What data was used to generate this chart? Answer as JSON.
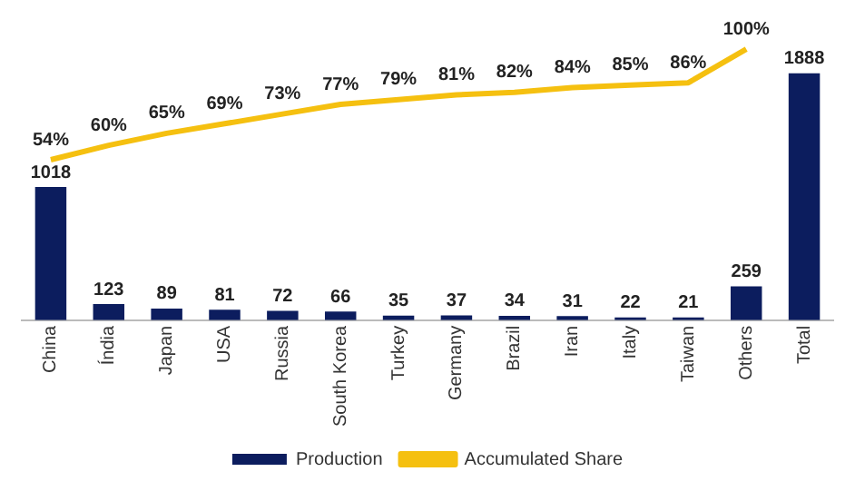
{
  "chart_data": {
    "type": "bar",
    "categories": [
      "China",
      "Índia",
      "Japan",
      "USA",
      "Russia",
      "South Korea",
      "Turkey",
      "Germany",
      "Brazil",
      "Iran",
      "Italy",
      "Taiwan",
      "Others",
      "Total"
    ],
    "series": [
      {
        "name": "Production",
        "color": "#0c1d5e",
        "values": [
          1018,
          123,
          89,
          81,
          72,
          66,
          35,
          37,
          34,
          31,
          22,
          21,
          259,
          1888
        ],
        "value_labels": [
          "1018",
          "123",
          "89",
          "81",
          "72",
          "66",
          "35",
          "37",
          "34",
          "31",
          "22",
          "21",
          "259",
          "1888"
        ]
      },
      {
        "name": "Accumulated Share",
        "type": "line",
        "axis": "y2",
        "color": "#f5c010",
        "values": [
          54,
          60,
          65,
          69,
          73,
          77,
          79,
          81,
          82,
          84,
          85,
          86,
          100,
          null
        ],
        "value_labels": [
          "54%",
          "60%",
          "65%",
          "69%",
          "73%",
          "77%",
          "79%",
          "81%",
          "82%",
          "84%",
          "85%",
          "86%",
          "100%",
          null
        ]
      }
    ],
    "legend": "bottom",
    "tick_labels": "x",
    "grid": false,
    "marker": "none"
  }
}
